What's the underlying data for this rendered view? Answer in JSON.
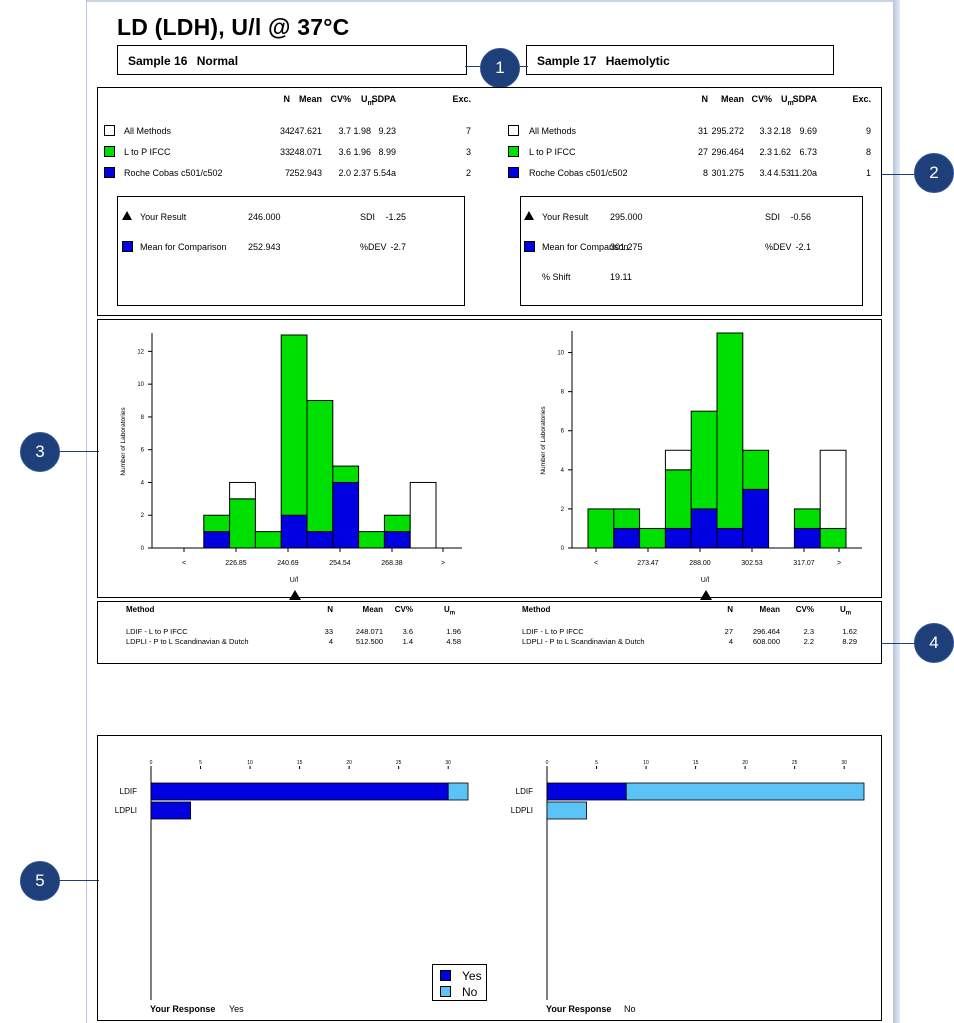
{
  "title": "LD (LDH), U/l @ 37°C",
  "samples": [
    {
      "number": "Sample 16",
      "condition": "Normal"
    },
    {
      "number": "Sample 17",
      "condition": "Haemolytic"
    }
  ],
  "callouts": [
    "1",
    "2",
    "3",
    "4",
    "5"
  ],
  "stats_headers": {
    "n": "N",
    "mean": "Mean",
    "cv": "CV%",
    "um": "U",
    "um_sub": "m",
    "sdpa": "SDPA",
    "exc": "Exc."
  },
  "stats": [
    {
      "rows": [
        {
          "label": "All Methods",
          "n": "34",
          "mean": "247.621",
          "cv": "3.7",
          "um": "1.98",
          "sdpa": "9.23",
          "exc": "7",
          "color": "#ffffff"
        },
        {
          "label": "L to P IFCC",
          "n": "33",
          "mean": "248.071",
          "cv": "3.6",
          "um": "1.96",
          "sdpa": "8.99",
          "exc": "3",
          "color": "#00e000"
        },
        {
          "label": "Roche Cobas c501/c502",
          "n": "7",
          "mean": "252.943",
          "cv": "2.0",
          "um": "2.37",
          "sdpa": "5.54a",
          "exc": "2",
          "color": "#0000e0"
        }
      ],
      "your_result_label": "Your Result",
      "your_result": "246.000",
      "mean_label": "Mean for Comparison",
      "mean_value": "252.943",
      "sdi_label": "SDI",
      "sdi": "-1.25",
      "dev_label": "%DEV",
      "dev": "-2.7",
      "shift_label": "",
      "shift": ""
    },
    {
      "rows": [
        {
          "label": "All Methods",
          "n": "31",
          "mean": "295.272",
          "cv": "3.3",
          "um": "2.18",
          "sdpa": "9.69",
          "exc": "9",
          "color": "#ffffff"
        },
        {
          "label": "L to P IFCC",
          "n": "27",
          "mean": "296.464",
          "cv": "2.3",
          "um": "1.62",
          "sdpa": "6.73",
          "exc": "8",
          "color": "#00e000"
        },
        {
          "label": "Roche Cobas c501/c502",
          "n": "8",
          "mean": "301.275",
          "cv": "3.4",
          "um": "4.53",
          "sdpa": "11.20a",
          "exc": "1",
          "color": "#0000e0"
        }
      ],
      "your_result_label": "Your Result",
      "your_result": "295.000",
      "mean_label": "Mean for Comparison",
      "mean_value": "301.275",
      "sdi_label": "SDI",
      "sdi": "-0.56",
      "dev_label": "%DEV",
      "dev": "-2.1",
      "shift_label": "% Shift",
      "shift": "19.11"
    }
  ],
  "method_headers": {
    "method": "Method",
    "n": "N",
    "mean": "Mean",
    "cv": "CV%",
    "um": "U",
    "um_sub": "m"
  },
  "methods": [
    [
      {
        "method": "LDIF - L to P IFCC",
        "n": "33",
        "mean": "248.071",
        "cv": "3.6",
        "um": "1.96"
      },
      {
        "method": "LDPLI - P to L Scandinavian & Dutch",
        "n": "4",
        "mean": "512.500",
        "cv": "1.4",
        "um": "4.58"
      }
    ],
    [
      {
        "method": "LDIF - L to P IFCC",
        "n": "27",
        "mean": "296.464",
        "cv": "2.3",
        "um": "1.62"
      },
      {
        "method": "LDPLI - P to L Scandinavian & Dutch",
        "n": "4",
        "mean": "608.000",
        "cv": "2.2",
        "um": "8.29"
      }
    ]
  ],
  "responses": [
    {
      "label": "Your Response",
      "value": "Yes"
    },
    {
      "label": "Your Response",
      "value": "No"
    }
  ],
  "legend": [
    {
      "label": "Yes",
      "color": "#0000e0"
    },
    {
      "label": "No",
      "color": "#5bc3f5"
    }
  ],
  "chart_data": [
    {
      "type": "bar",
      "stacked": true,
      "ylabel": "Number of Laboratories",
      "xlabel": "U/l",
      "ylim": [
        0,
        13
      ],
      "yticks": [
        0,
        2,
        4,
        6,
        8,
        10,
        12
      ],
      "xtick_labels": [
        "<",
        "226.85",
        "240.69",
        "254.54",
        "268.38",
        ">"
      ],
      "bins": 10,
      "series": [
        {
          "name": "Roche Cobas c501/c502",
          "color": "#0000e0",
          "values": [
            0,
            1,
            0,
            0,
            2,
            1,
            4,
            0,
            1,
            0
          ]
        },
        {
          "name": "L to P IFCC",
          "color": "#00e000",
          "values": [
            0,
            1,
            3,
            1,
            11,
            8,
            1,
            1,
            1,
            0
          ]
        },
        {
          "name": "All Methods",
          "color": "#ffffff",
          "values": [
            0,
            0,
            1,
            0,
            0,
            0,
            0,
            0,
            0,
            4
          ]
        }
      ],
      "your_result_bin": 4.3
    },
    {
      "type": "bar",
      "stacked": true,
      "ylabel": "Number of Laboratories",
      "xlabel": "U/l",
      "ylim": [
        0,
        11
      ],
      "yticks": [
        0,
        2,
        4,
        6,
        8,
        10
      ],
      "xtick_labels": [
        "<",
        "273.47",
        "288.00",
        "302.53",
        "317.07",
        ">"
      ],
      "bins": 10,
      "series": [
        {
          "name": "Roche Cobas c501/c502",
          "color": "#0000e0",
          "values": [
            0,
            1,
            0,
            1,
            2,
            1,
            3,
            0,
            1,
            0
          ]
        },
        {
          "name": "L to P IFCC",
          "color": "#00e000",
          "values": [
            2,
            1,
            1,
            3,
            5,
            10,
            2,
            0,
            1,
            1
          ]
        },
        {
          "name": "All Methods",
          "color": "#ffffff",
          "values": [
            0,
            0,
            0,
            1,
            0,
            0,
            0,
            0,
            0,
            4
          ]
        }
      ],
      "your_result_bin": 4.5
    },
    {
      "type": "bar",
      "orientation": "horizontal",
      "stacked": true,
      "categories": [
        "LDIF",
        "LDPLI"
      ],
      "xlim": [
        0,
        32
      ],
      "xticks": [
        0,
        5,
        10,
        15,
        20,
        25,
        30
      ],
      "series": [
        {
          "name": "Yes",
          "color": "#0000e0",
          "values": [
            30,
            4
          ]
        },
        {
          "name": "No",
          "color": "#5bc3f5",
          "values": [
            2,
            0
          ]
        }
      ]
    },
    {
      "type": "bar",
      "orientation": "horizontal",
      "stacked": true,
      "categories": [
        "LDIF",
        "LDPLI"
      ],
      "xlim": [
        0,
        32
      ],
      "xticks": [
        0,
        5,
        10,
        15,
        20,
        25,
        30
      ],
      "series": [
        {
          "name": "Yes",
          "color": "#0000e0",
          "values": [
            8,
            0
          ]
        },
        {
          "name": "No",
          "color": "#5bc3f5",
          "values": [
            24,
            4
          ]
        }
      ]
    }
  ]
}
